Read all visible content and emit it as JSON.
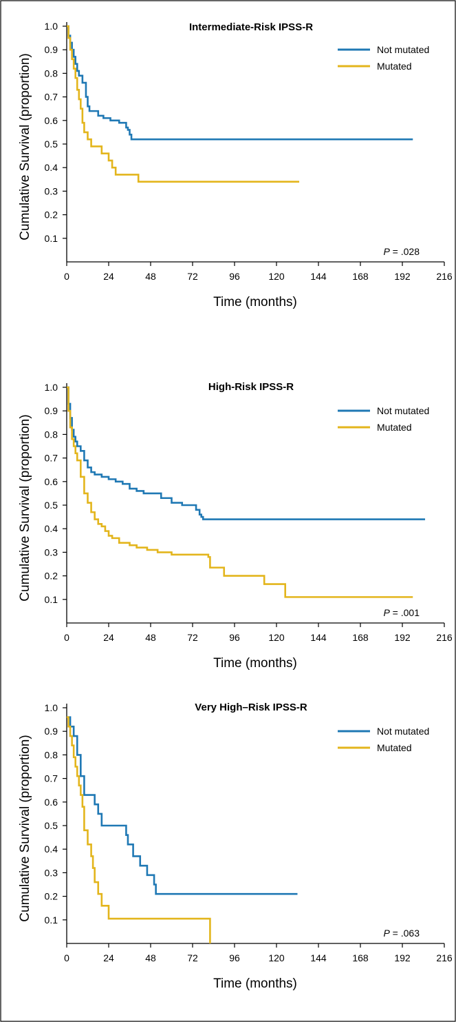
{
  "colors": {
    "not_mutated": "#1f78b4",
    "mutated": "#e3b51c",
    "border": "#000000"
  },
  "chart_data": [
    {
      "type": "line",
      "title": "Intermediate-Risk IPSS-R",
      "xlabel": "Time (months)",
      "ylabel": "Cumulative Survival (proportion)",
      "xlim": [
        0,
        216
      ],
      "ylim": [
        0,
        1
      ],
      "xticks": [
        "0",
        "24",
        "48",
        "72",
        "96",
        "120",
        "144",
        "168",
        "192",
        "216"
      ],
      "yticks": [
        "0.1",
        "0.2",
        "0.3",
        "0.4",
        "0.5",
        "0.6",
        "0.7",
        "0.8",
        "0.9",
        "1.0"
      ],
      "legend_position": "top-right",
      "annotation": {
        "prefix": "P",
        "value": " = .028"
      },
      "grid": false,
      "series": [
        {
          "name": "Not mutated",
          "color_key": "not_mutated",
          "x": [
            0,
            1,
            2,
            3,
            4,
            5,
            6,
            7,
            9,
            11,
            12,
            13,
            15,
            18,
            21,
            25,
            30,
            34,
            35,
            36,
            37,
            198
          ],
          "y": [
            1.0,
            0.96,
            0.93,
            0.9,
            0.87,
            0.84,
            0.81,
            0.79,
            0.76,
            0.7,
            0.66,
            0.64,
            0.64,
            0.62,
            0.61,
            0.6,
            0.59,
            0.57,
            0.56,
            0.54,
            0.52,
            0.52
          ]
        },
        {
          "name": "Mutated",
          "color_key": "mutated",
          "x": [
            0,
            1,
            2,
            3,
            4,
            5,
            6,
            7,
            8,
            9,
            10,
            12,
            14,
            17,
            20,
            24,
            26,
            28,
            41,
            133
          ],
          "y": [
            1.0,
            0.95,
            0.9,
            0.86,
            0.82,
            0.78,
            0.73,
            0.69,
            0.65,
            0.59,
            0.55,
            0.52,
            0.49,
            0.49,
            0.46,
            0.43,
            0.4,
            0.37,
            0.34,
            0.34
          ]
        }
      ]
    },
    {
      "type": "line",
      "title": "High-Risk IPSS-R",
      "xlabel": "Time (months)",
      "ylabel": "Cumulative Survival (proportion)",
      "xlim": [
        0,
        216
      ],
      "ylim": [
        0,
        1
      ],
      "xticks": [
        "0",
        "24",
        "48",
        "72",
        "96",
        "120",
        "144",
        "168",
        "192",
        "216"
      ],
      "yticks": [
        "0.1",
        "0.2",
        "0.3",
        "0.4",
        "0.5",
        "0.6",
        "0.7",
        "0.8",
        "0.9",
        "1.0"
      ],
      "legend_position": "top-right",
      "annotation": {
        "prefix": "P",
        "value": " = .001"
      },
      "grid": false,
      "series": [
        {
          "name": "Not mutated",
          "color_key": "not_mutated",
          "x": [
            0,
            1,
            2,
            3,
            4,
            5,
            6,
            8,
            10,
            12,
            14,
            16,
            20,
            24,
            28,
            32,
            36,
            40,
            44,
            48,
            54,
            60,
            66,
            72,
            74,
            76,
            77,
            78,
            205
          ],
          "y": [
            1.0,
            0.93,
            0.87,
            0.82,
            0.79,
            0.77,
            0.75,
            0.73,
            0.69,
            0.66,
            0.64,
            0.63,
            0.62,
            0.61,
            0.6,
            0.59,
            0.57,
            0.56,
            0.55,
            0.55,
            0.53,
            0.51,
            0.5,
            0.5,
            0.48,
            0.46,
            0.45,
            0.44,
            0.44
          ]
        },
        {
          "name": "Mutated",
          "color_key": "mutated",
          "x": [
            0,
            1,
            2,
            3,
            4,
            5,
            6,
            8,
            10,
            12,
            14,
            16,
            18,
            20,
            22,
            24,
            26,
            30,
            36,
            40,
            46,
            52,
            60,
            70,
            81,
            82,
            90,
            113,
            125,
            198
          ],
          "y": [
            1.0,
            0.9,
            0.83,
            0.78,
            0.75,
            0.72,
            0.69,
            0.62,
            0.55,
            0.51,
            0.47,
            0.44,
            0.42,
            0.41,
            0.39,
            0.37,
            0.36,
            0.34,
            0.33,
            0.32,
            0.31,
            0.3,
            0.29,
            0.29,
            0.28,
            0.235,
            0.2,
            0.165,
            0.11,
            0.11
          ]
        }
      ]
    },
    {
      "type": "line",
      "title": "Very High–Risk IPSS-R",
      "xlabel": "Time (months)",
      "ylabel": "Cumulative Survival (proportion)",
      "xlim": [
        0,
        216
      ],
      "ylim": [
        0,
        1
      ],
      "xticks": [
        "0",
        "24",
        "48",
        "72",
        "96",
        "120",
        "144",
        "168",
        "192",
        "216"
      ],
      "yticks": [
        "0.1",
        "0.2",
        "0.3",
        "0.4",
        "0.5",
        "0.6",
        "0.7",
        "0.8",
        "0.9",
        "1.0"
      ],
      "legend_position": "top-right",
      "annotation": {
        "prefix": "P",
        "value": " = .063"
      },
      "grid": false,
      "series": [
        {
          "name": "Not mutated",
          "color_key": "not_mutated",
          "x": [
            0,
            2,
            4,
            6,
            8,
            10,
            16,
            18,
            20,
            34,
            35,
            38,
            42,
            46,
            50,
            51,
            132
          ],
          "y": [
            0.96,
            0.92,
            0.88,
            0.8,
            0.71,
            0.63,
            0.59,
            0.55,
            0.5,
            0.46,
            0.42,
            0.37,
            0.33,
            0.29,
            0.25,
            0.21,
            0.21
          ]
        },
        {
          "name": "Mutated",
          "color_key": "mutated",
          "x": [
            0,
            1,
            2,
            3,
            4,
            5,
            6,
            7,
            8,
            9,
            10,
            12,
            14,
            15,
            16,
            18,
            20,
            24,
            82,
            82
          ],
          "y": [
            0.96,
            0.92,
            0.88,
            0.84,
            0.79,
            0.75,
            0.71,
            0.67,
            0.63,
            0.58,
            0.48,
            0.42,
            0.37,
            0.32,
            0.26,
            0.21,
            0.16,
            0.105,
            0.105,
            0.0
          ]
        }
      ]
    }
  ]
}
